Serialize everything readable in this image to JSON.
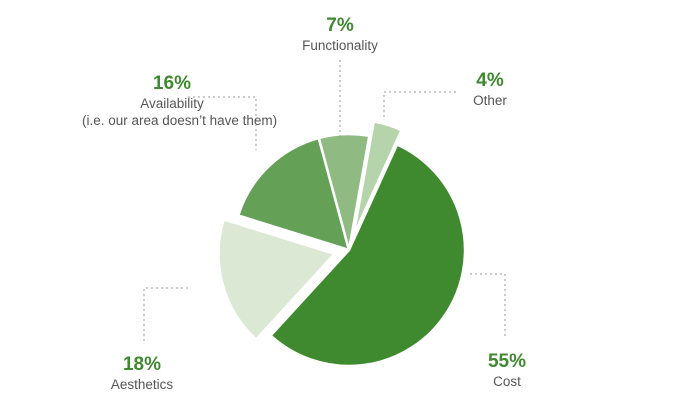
{
  "chart_data": {
    "type": "pie",
    "title": "",
    "slices": [
      {
        "pct_label": "55%",
        "label": "Cost",
        "value": 55,
        "color": "#3f8a2f",
        "exploded": false
      },
      {
        "pct_label": "18%",
        "label": "Aesthetics",
        "value": 18,
        "color": "#dbe8d4",
        "exploded": true
      },
      {
        "pct_label": "16%",
        "label": "Availability",
        "sublabel": "(i.e. our area doesn’t have them)",
        "value": 16,
        "color": "#64a056",
        "exploded": false
      },
      {
        "pct_label": "7%",
        "label": "Functionality",
        "value": 7,
        "color": "#8fbb82",
        "exploded": false
      },
      {
        "pct_label": "4%",
        "label": "Other",
        "value": 4,
        "color": "#b6d4ab",
        "exploded": true
      }
    ],
    "label_color": "#3f8a2f",
    "leader_color": "#9a9a9a",
    "legend": "none"
  }
}
